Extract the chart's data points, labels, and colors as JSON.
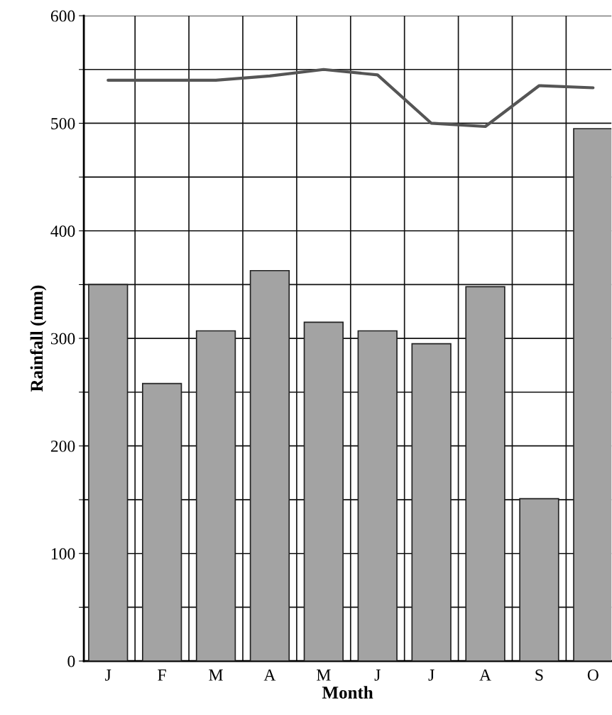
{
  "chart_data": {
    "type": "bar",
    "categories": [
      "J",
      "F",
      "M",
      "A",
      "M",
      "J",
      "J",
      "A",
      "S",
      "O"
    ],
    "xlabel": "Month",
    "ylabel": "Rainfall (mm)",
    "series": [
      {
        "color": "#a3a3a3",
        "values": [
          350,
          258,
          307,
          363,
          315,
          307,
          295,
          348,
          151,
          495
        ]
      },
      {
        "type": "line",
        "color": "#555555",
        "values": [
          540,
          540,
          540,
          544,
          550,
          545,
          500,
          497,
          535,
          533
        ]
      }
    ],
    "ylim": [
      0,
      600
    ],
    "yticks": [
      0,
      {
        "value": 50,
        "label": null
      },
      100,
      {
        "value": 150,
        "label": null
      },
      200,
      {
        "value": 250,
        "label": null
      },
      300,
      {
        "value": 350,
        "label": null
      },
      400,
      {
        "value": 450,
        "label": null
      },
      500,
      {
        "value": 550,
        "label": null
      },
      600
    ],
    "grid": true
  }
}
